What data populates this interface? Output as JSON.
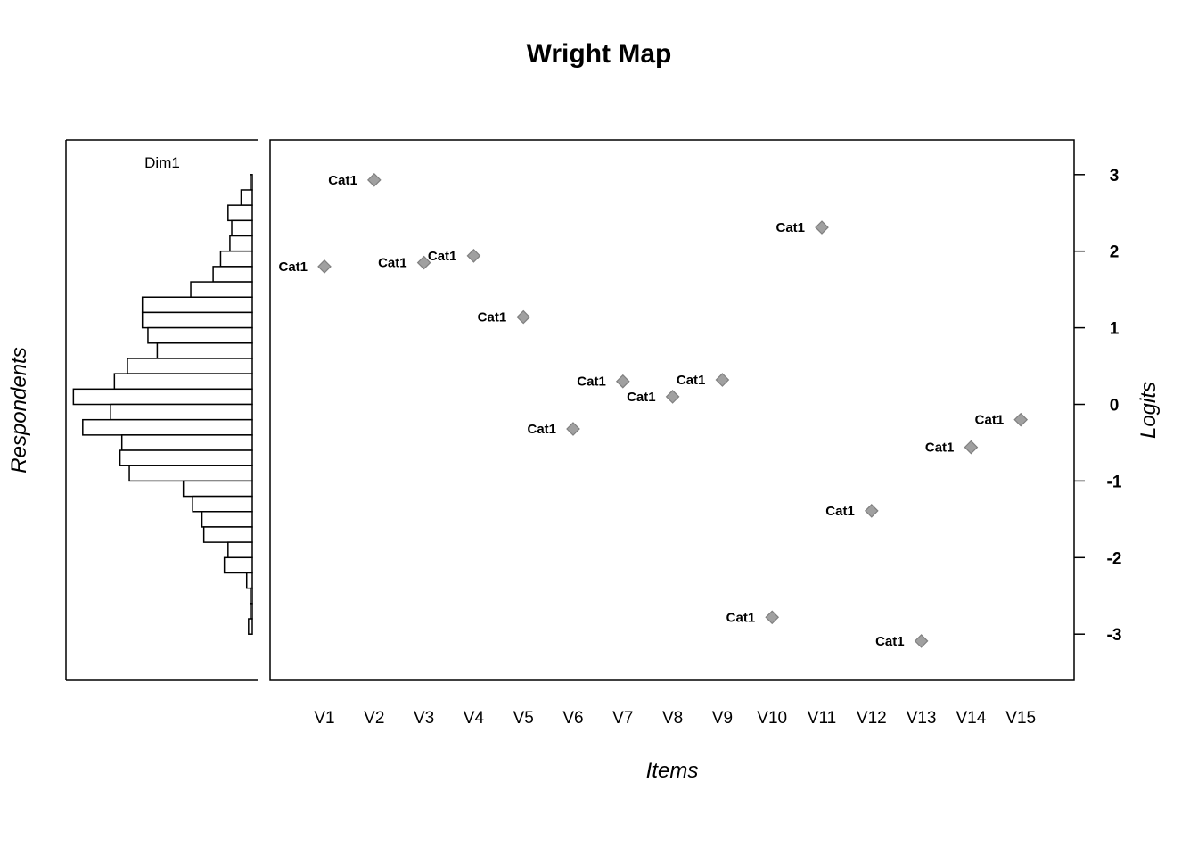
{
  "chart_data": {
    "type": "scatter",
    "title": "Wright Map",
    "xlabel": "Items",
    "ylabel": "Logits",
    "left_ylabel": "Respondents",
    "panel_label": "Dim1",
    "ylim": [
      -3.6,
      3.45
    ],
    "y_ticks": [
      3,
      2,
      1,
      0,
      -1,
      -2,
      -3
    ],
    "categories": [
      "V1",
      "V2",
      "V3",
      "V4",
      "V5",
      "V6",
      "V7",
      "V8",
      "V9",
      "V10",
      "V11",
      "V12",
      "V13",
      "V14",
      "V15"
    ],
    "series": [
      {
        "name": "Cat1",
        "marker": "diamond",
        "color": "#a0a0a0",
        "values": [
          1.8,
          2.93,
          1.85,
          1.94,
          1.14,
          -0.32,
          0.3,
          0.1,
          0.32,
          -2.78,
          2.31,
          -1.39,
          -3.09,
          -0.56,
          -0.2
        ]
      }
    ],
    "histogram": {
      "orientation": "horizontal",
      "bin_width": 0.2,
      "bins": [
        {
          "y": 2.9,
          "count": 1
        },
        {
          "y": 2.7,
          "count": 6
        },
        {
          "y": 2.5,
          "count": 13
        },
        {
          "y": 2.3,
          "count": 11
        },
        {
          "y": 2.1,
          "count": 12
        },
        {
          "y": 1.9,
          "count": 17
        },
        {
          "y": 1.7,
          "count": 21
        },
        {
          "y": 1.5,
          "count": 33
        },
        {
          "y": 1.3,
          "count": 59
        },
        {
          "y": 1.1,
          "count": 59
        },
        {
          "y": 0.9,
          "count": 56
        },
        {
          "y": 0.7,
          "count": 51
        },
        {
          "y": 0.5,
          "count": 67
        },
        {
          "y": 0.3,
          "count": 74
        },
        {
          "y": 0.1,
          "count": 96
        },
        {
          "y": -0.1,
          "count": 76
        },
        {
          "y": -0.3,
          "count": 91
        },
        {
          "y": -0.5,
          "count": 70
        },
        {
          "y": -0.7,
          "count": 71
        },
        {
          "y": -0.9,
          "count": 66
        },
        {
          "y": -1.1,
          "count": 37
        },
        {
          "y": -1.3,
          "count": 32
        },
        {
          "y": -1.5,
          "count": 27
        },
        {
          "y": -1.7,
          "count": 26
        },
        {
          "y": -1.9,
          "count": 13
        },
        {
          "y": -2.1,
          "count": 15
        },
        {
          "y": -2.3,
          "count": 3
        },
        {
          "y": -2.5,
          "count": 1
        },
        {
          "y": -2.7,
          "count": 1
        },
        {
          "y": -2.9,
          "count": 2
        }
      ]
    },
    "grid": false,
    "legend": "none"
  }
}
